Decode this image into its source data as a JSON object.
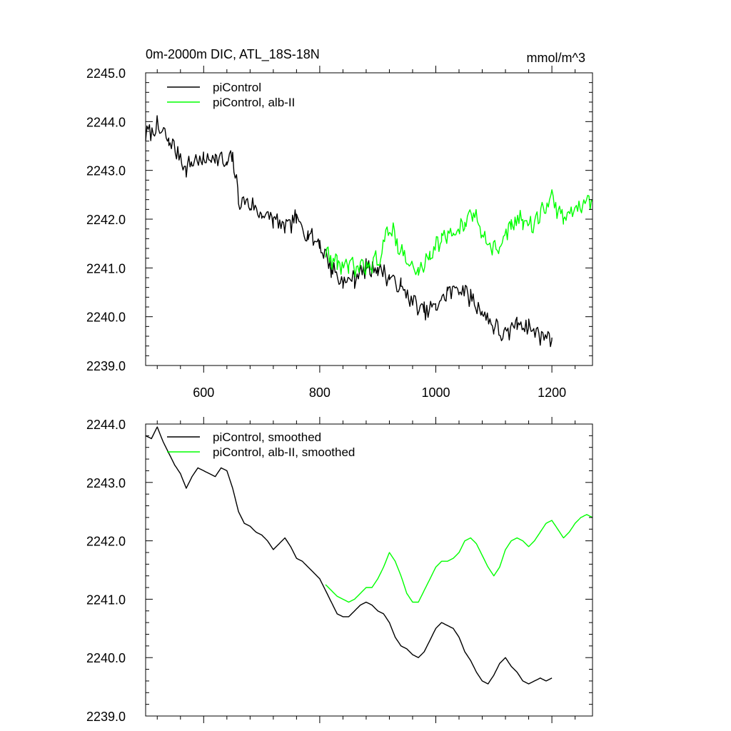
{
  "chart_data": [
    {
      "type": "line",
      "title": "0m-2000m DIC, ATL_18S-18N",
      "units_label": "mmol/m^3",
      "xlabel": "",
      "ylabel": "",
      "xlim": [
        500,
        1270
      ],
      "ylim": [
        2239.0,
        2245.0
      ],
      "xticks": [
        600,
        800,
        1000,
        1200
      ],
      "xtick_labels": [
        "600",
        "800",
        "1000",
        "1200"
      ],
      "yticks": [
        2239.0,
        2240.0,
        2241.0,
        2242.0,
        2243.0,
        2244.0,
        2245.0
      ],
      "ytick_labels": [
        "2239.0",
        "2240.0",
        "2241.0",
        "2242.0",
        "2243.0",
        "2244.0",
        "2245.0"
      ],
      "legend_position": "top-left",
      "grid": false,
      "series": [
        {
          "name": "piControl",
          "color": "#000000",
          "x": [
            500,
            520,
            540,
            560,
            570,
            580,
            600,
            620,
            640,
            650,
            660,
            680,
            700,
            720,
            740,
            760,
            780,
            800,
            820,
            840,
            860,
            880,
            900,
            920,
            940,
            960,
            980,
            1000,
            1020,
            1040,
            1060,
            1080,
            1100,
            1120,
            1140,
            1160,
            1180,
            1200
          ],
          "y": [
            2243.7,
            2243.9,
            2243.6,
            2243.3,
            2243.0,
            2243.2,
            2243.2,
            2243.3,
            2243.1,
            2243.3,
            2242.4,
            2242.3,
            2242.1,
            2242.0,
            2241.8,
            2242.0,
            2241.7,
            2241.5,
            2241.0,
            2240.7,
            2240.8,
            2241.0,
            2241.0,
            2240.8,
            2240.6,
            2240.3,
            2240.1,
            2240.2,
            2240.5,
            2240.6,
            2240.4,
            2240.1,
            2239.8,
            2239.6,
            2239.9,
            2239.8,
            2239.6,
            2239.6
          ]
        },
        {
          "name": "piControl, alb-II",
          "color": "#00ff00",
          "x": [
            810,
            830,
            850,
            870,
            890,
            905,
            920,
            935,
            950,
            970,
            990,
            1010,
            1030,
            1050,
            1065,
            1080,
            1095,
            1110,
            1130,
            1150,
            1170,
            1185,
            1200,
            1220,
            1240,
            1255,
            1270
          ],
          "y": [
            2241.3,
            2241.1,
            2241.0,
            2241.0,
            2241.1,
            2241.2,
            2241.9,
            2241.5,
            2241.1,
            2240.9,
            2241.3,
            2241.6,
            2241.7,
            2241.9,
            2242.1,
            2241.8,
            2241.4,
            2241.4,
            2241.9,
            2242.0,
            2241.9,
            2242.2,
            2242.4,
            2242.0,
            2242.2,
            2242.4,
            2242.4
          ]
        }
      ]
    },
    {
      "type": "line",
      "title": "",
      "xlabel": "",
      "ylabel": "",
      "xlim": [
        500,
        1270
      ],
      "ylim": [
        2239.0,
        2244.0
      ],
      "xticks": [
        600,
        800,
        1000,
        1200
      ],
      "xtick_labels": [],
      "yticks": [
        2239.0,
        2240.0,
        2241.0,
        2242.0,
        2243.0,
        2244.0
      ],
      "ytick_labels": [
        "2239.0",
        "2240.0",
        "2241.0",
        "2242.0",
        "2243.0",
        "2244.0"
      ],
      "legend_position": "top-left",
      "grid": false,
      "series": [
        {
          "name": "piControl, smoothed",
          "color": "#000000",
          "x": [
            500,
            510,
            520,
            530,
            540,
            550,
            560,
            570,
            580,
            590,
            600,
            610,
            620,
            630,
            640,
            650,
            660,
            670,
            680,
            690,
            700,
            710,
            720,
            730,
            740,
            750,
            760,
            770,
            780,
            790,
            800,
            810,
            820,
            830,
            840,
            850,
            860,
            870,
            880,
            890,
            900,
            910,
            920,
            930,
            940,
            950,
            960,
            970,
            980,
            990,
            1000,
            1010,
            1020,
            1030,
            1040,
            1050,
            1060,
            1070,
            1080,
            1090,
            1100,
            1110,
            1120,
            1130,
            1140,
            1150,
            1160,
            1170,
            1180,
            1190,
            1200
          ],
          "y": [
            2243.8,
            2243.75,
            2243.95,
            2243.7,
            2243.5,
            2243.3,
            2243.15,
            2242.9,
            2243.1,
            2243.25,
            2243.2,
            2243.15,
            2243.1,
            2243.25,
            2243.2,
            2242.9,
            2242.5,
            2242.3,
            2242.25,
            2242.15,
            2242.1,
            2242.0,
            2241.85,
            2241.95,
            2242.05,
            2241.9,
            2241.7,
            2241.65,
            2241.55,
            2241.45,
            2241.35,
            2241.15,
            2240.95,
            2240.75,
            2240.7,
            2240.7,
            2240.8,
            2240.9,
            2240.95,
            2240.9,
            2240.8,
            2240.75,
            2240.6,
            2240.35,
            2240.2,
            2240.15,
            2240.05,
            2240.0,
            2240.1,
            2240.3,
            2240.5,
            2240.6,
            2240.55,
            2240.5,
            2240.35,
            2240.1,
            2239.95,
            2239.75,
            2239.6,
            2239.55,
            2239.7,
            2239.9,
            2240.0,
            2239.85,
            2239.75,
            2239.6,
            2239.55,
            2239.6,
            2239.65,
            2239.6,
            2239.65
          ]
        },
        {
          "name": "piControl, alb-II, smoothed",
          "color": "#00ff00",
          "x": [
            810,
            820,
            830,
            840,
            850,
            860,
            870,
            880,
            890,
            900,
            910,
            920,
            930,
            940,
            950,
            960,
            970,
            980,
            990,
            1000,
            1010,
            1020,
            1030,
            1040,
            1050,
            1060,
            1070,
            1080,
            1090,
            1100,
            1110,
            1120,
            1130,
            1140,
            1150,
            1160,
            1170,
            1180,
            1190,
            1200,
            1210,
            1220,
            1230,
            1240,
            1250,
            1260,
            1270
          ],
          "y": [
            2241.25,
            2241.15,
            2241.05,
            2241.0,
            2240.95,
            2241.0,
            2241.1,
            2241.2,
            2241.2,
            2241.35,
            2241.55,
            2241.8,
            2241.65,
            2241.4,
            2241.1,
            2240.95,
            2240.95,
            2241.15,
            2241.35,
            2241.55,
            2241.65,
            2241.65,
            2241.7,
            2241.8,
            2242.0,
            2242.05,
            2241.95,
            2241.75,
            2241.55,
            2241.4,
            2241.55,
            2241.85,
            2242.0,
            2242.05,
            2242.0,
            2241.9,
            2242.0,
            2242.15,
            2242.3,
            2242.35,
            2242.2,
            2242.05,
            2242.15,
            2242.3,
            2242.4,
            2242.45,
            2242.4
          ]
        }
      ]
    }
  ]
}
